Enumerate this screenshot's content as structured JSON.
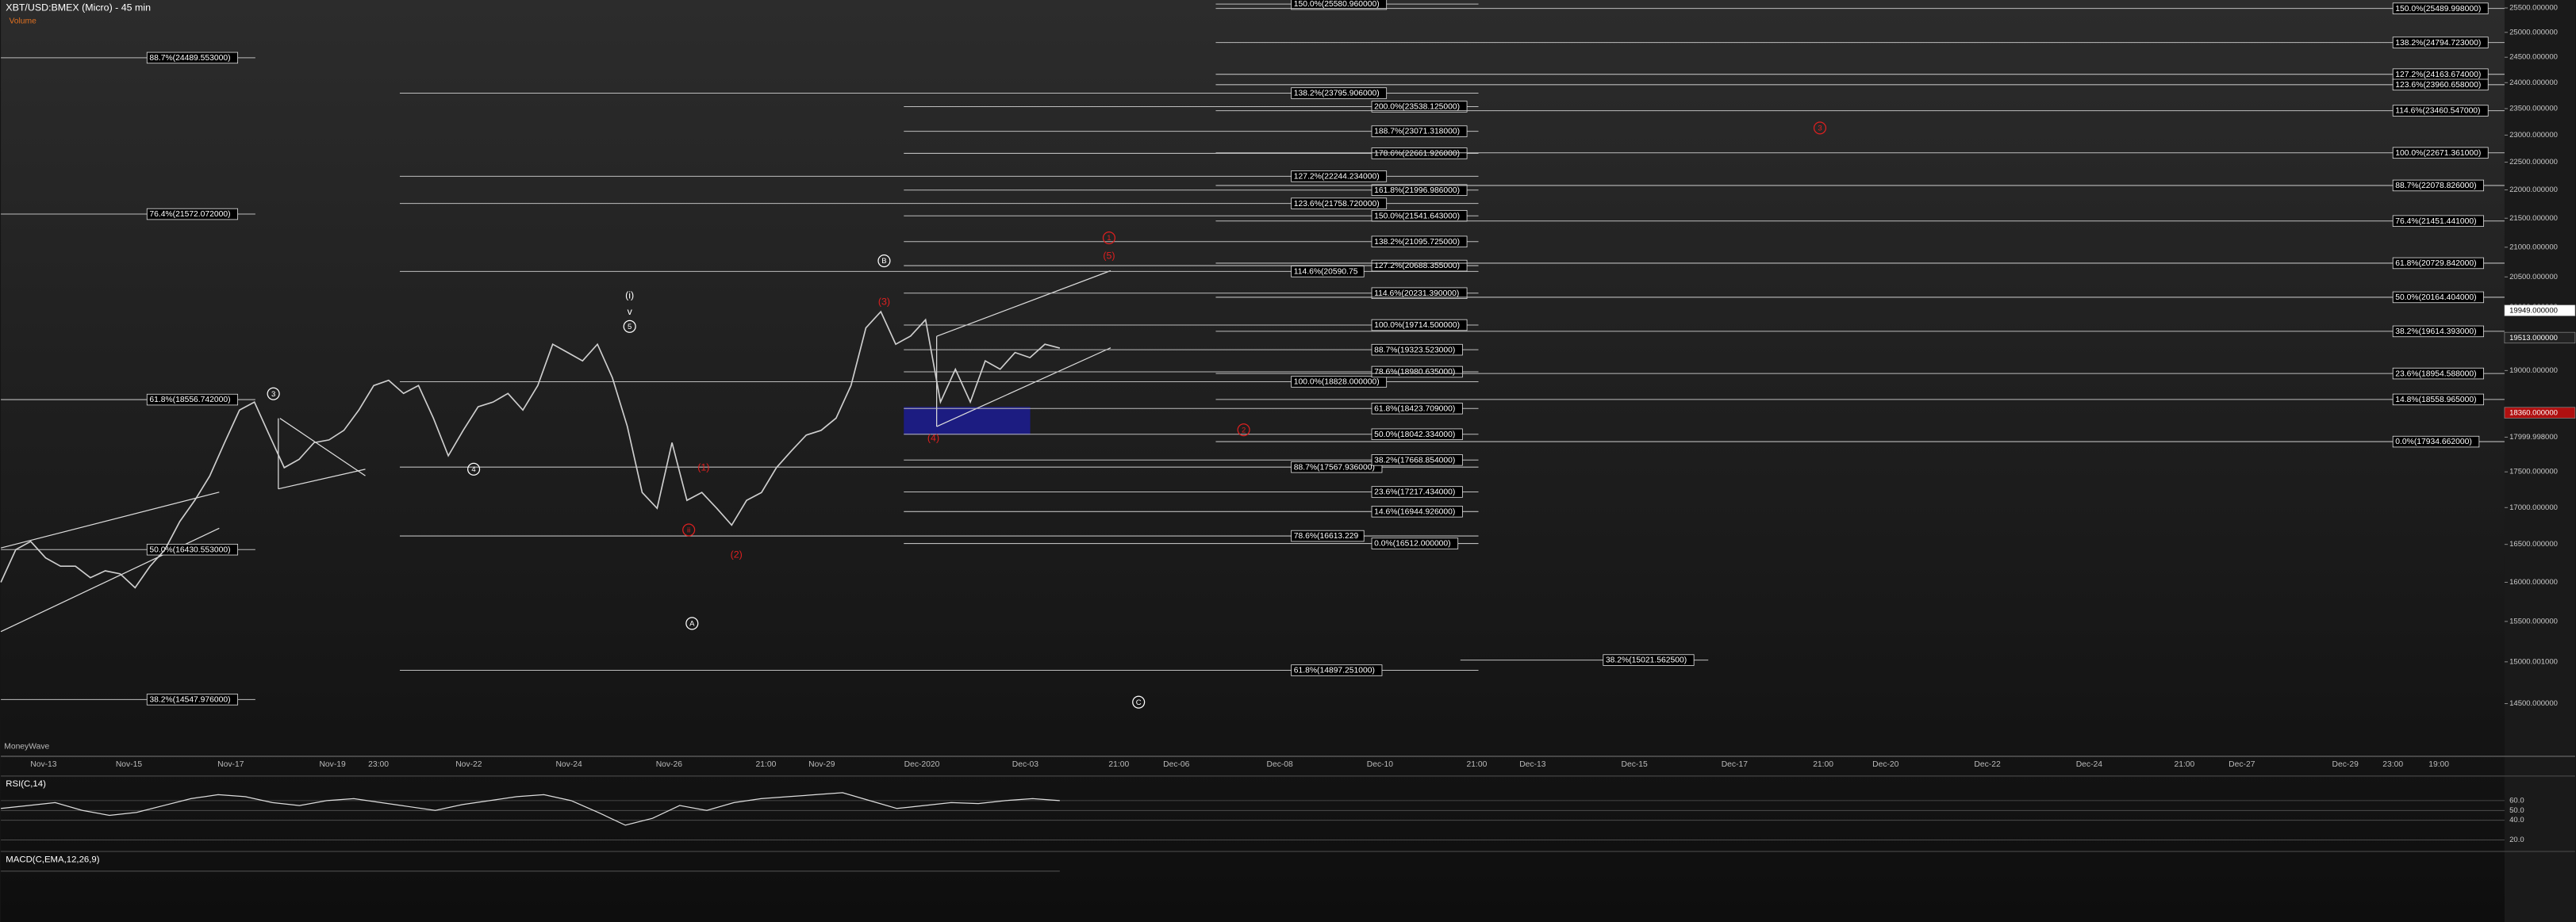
{
  "header": {
    "title": "XBT/USD:BMEX (Micro) - 45 min",
    "volume_label": "Volume",
    "wave_indicator": "MoneyWave"
  },
  "chart_data": {
    "type": "line",
    "log_scale": true,
    "ylim": [
      13893,
      25665
    ],
    "color": "#cfcfcf",
    "yticks": [
      {
        "value": 25500,
        "label": "25500.000000"
      },
      {
        "value": 25000,
        "label": "25000.000000"
      },
      {
        "value": 24500,
        "label": "24500.000000"
      },
      {
        "value": 24000,
        "label": "24000.000000"
      },
      {
        "value": 23500,
        "label": "23500.000000"
      },
      {
        "value": 23000,
        "label": "23000.000000"
      },
      {
        "value": 22500,
        "label": "22500.000000"
      },
      {
        "value": 22000,
        "label": "22000.000000"
      },
      {
        "value": 21500,
        "label": "21500.000000"
      },
      {
        "value": 21000,
        "label": "21000.000000"
      },
      {
        "value": 20500,
        "label": "20500.000000"
      },
      {
        "value": 20000,
        "label": "20000.000000"
      },
      {
        "value": 19000,
        "label": "19000.000000"
      },
      {
        "value": 17999.998,
        "label": "17999.998000"
      },
      {
        "value": 17500,
        "label": "17500.000000"
      },
      {
        "value": 17000,
        "label": "17000.000000"
      },
      {
        "value": 16500,
        "label": "16500.000000"
      },
      {
        "value": 16000,
        "label": "16000.000000"
      },
      {
        "value": 15500,
        "label": "15500.000000"
      },
      {
        "value": 15000.001,
        "label": "15000.001000"
      },
      {
        "value": 14500,
        "label": "14500.000000"
      }
    ],
    "x_labels": [
      "Nov-13",
      "Nov-15",
      "Nov-17",
      "Nov-19",
      "23:00",
      "Nov-22",
      "Nov-24",
      "Nov-26",
      "21:00",
      "Nov-29",
      "Dec-2020",
      "Dec-03",
      "21:00",
      "Dec-06",
      "Dec-08",
      "Dec-10",
      "21:00",
      "Dec-13",
      "Dec-15",
      "Dec-17",
      "21:00",
      "Dec-20",
      "Dec-22",
      "Dec-24",
      "21:00",
      "Dec-27",
      "Dec-29",
      "23:00",
      "19:00"
    ],
    "values": [
      16000,
      16430,
      16540,
      16320,
      16210,
      16210,
      16060,
      16150,
      16110,
      15930,
      16210,
      16430,
      16810,
      17100,
      17440,
      17920,
      18400,
      18520,
      18030,
      17560,
      17680,
      17920,
      17960,
      18100,
      18400,
      18770,
      18850,
      18650,
      18770,
      18280,
      17730,
      18100,
      18450,
      18520,
      18650,
      18400,
      18770,
      19410,
      19280,
      19150,
      19410,
      18890,
      18160,
      17210,
      16990,
      17920,
      17100,
      17210,
      16990,
      16760,
      17100,
      17210,
      17560,
      17800,
      18030,
      18100,
      18280,
      18770,
      19670,
      19930,
      19410,
      19540,
      19800,
      18520,
      19020,
      18520,
      19150,
      19020,
      19280,
      19200,
      19410,
      19350
    ],
    "price_markers": [
      {
        "value": 19949,
        "label": "19949.000000",
        "color": "#ffffff"
      },
      {
        "value": 19513,
        "label": "19513.000000",
        "color": "#222222"
      },
      {
        "value": 18360,
        "label": "18360.000000",
        "color": "#b01010"
      }
    ]
  },
  "fib_sets": [
    {
      "levels": [
        {
          "value": 24489.553,
          "label": "88.7%(24489.553000)"
        },
        {
          "value": 21572.072,
          "label": "76.4%(21572.072000)"
        },
        {
          "value": 18556.742,
          "label": "61.8%(18556.742000)"
        },
        {
          "value": 16430.553,
          "label": "50.0%(16430.553000)"
        },
        {
          "value": 14547.976,
          "label": "38.2%(14547.976000)"
        }
      ]
    },
    {
      "levels": [
        {
          "value": 25580.96,
          "label": "150.0%(25580.960000)"
        },
        {
          "value": 23795.906,
          "label": "138.2%(23795.906000)"
        },
        {
          "value": 22244.234,
          "label": "127.2%(22244.234000)"
        },
        {
          "value": 21758.72,
          "label": "123.6%(21758.720000)"
        },
        {
          "value": 20590.75,
          "label": "114.6%(20590.75"
        },
        {
          "value": 18828,
          "label": "100.0%(18828.000000)"
        },
        {
          "value": 17567.936,
          "label": "88.7%(17567.936000)"
        },
        {
          "value": 16613.229,
          "label": "78.6%(16613.229"
        },
        {
          "value": 14897.251,
          "label": "61.8%(14897.251000)"
        }
      ]
    },
    {
      "levels": [
        {
          "value": 23538.125,
          "label": "200.0%(23538.125000)"
        },
        {
          "value": 23071.318,
          "label": "188.7%(23071.318000)"
        },
        {
          "value": 22661.926,
          "label": "178.6%(22661.926000)"
        },
        {
          "value": 21996.986,
          "label": "161.8%(21996.986000)"
        },
        {
          "value": 21541.643,
          "label": "150.0%(21541.643000)"
        },
        {
          "value": 21095.725,
          "label": "138.2%(21095.725000)"
        },
        {
          "value": 20688.355,
          "label": "127.2%(20688.355000)"
        },
        {
          "value": 20231.39,
          "label": "114.6%(20231.390000)"
        },
        {
          "value": 19714.5,
          "label": "100.0%(19714.500000)"
        },
        {
          "value": 19323.523,
          "label": "88.7%(19323.523000)"
        },
        {
          "value": 18980.635,
          "label": "78.6%(18980.635000)"
        },
        {
          "value": 18423.709,
          "label": "61.8%(18423.709000)"
        },
        {
          "value": 18042.334,
          "label": "50.0%(18042.334000)"
        },
        {
          "value": 17668.854,
          "label": "38.2%(17668.854000)"
        },
        {
          "value": 17217.434,
          "label": "23.6%(17217.434000)"
        },
        {
          "value": 16944.926,
          "label": "14.6%(16944.926000)"
        },
        {
          "value": 16512,
          "label": "0.0%(16512.000000)"
        }
      ]
    },
    {
      "levels": [
        {
          "value": 25489.998,
          "label": "150.0%(25489.998000)"
        },
        {
          "value": 24794.723,
          "label": "138.2%(24794.723000)"
        },
        {
          "value": 24163.674,
          "label": "127.2%(24163.674000)"
        },
        {
          "value": 23960.658,
          "label": "123.6%(23960.658000)"
        },
        {
          "value": 23460.547,
          "label": "114.6%(23460.547000)"
        },
        {
          "value": 22671.361,
          "label": "100.0%(22671.361000)"
        },
        {
          "value": 22078.826,
          "label": "88.7%(22078.826000)"
        },
        {
          "value": 21451.441,
          "label": "76.4%(21451.441000)"
        },
        {
          "value": 20729.842,
          "label": "61.8%(20729.842000)"
        },
        {
          "value": 20164.404,
          "label": "50.0%(20164.404000)"
        },
        {
          "value": 19614.393,
          "label": "38.2%(19614.393000)"
        },
        {
          "value": 18954.588,
          "label": "23.6%(18954.588000)"
        },
        {
          "value": 18558.965,
          "label": "14.8%(18558.965000)"
        },
        {
          "value": 17934.662,
          "label": "0.0%(17934.662000)"
        }
      ]
    },
    {
      "levels": [
        {
          "value": 15021.5625,
          "label": "38.2%(15021.562500)"
        }
      ]
    }
  ],
  "annotations": [
    {
      "text": "(i)",
      "color": "#ffffff",
      "circled": false
    },
    {
      "text": "v",
      "color": "#ffffff",
      "circled": false
    },
    {
      "text": "5",
      "color": "#ffffff",
      "circled": true
    },
    {
      "text": "3",
      "color": "#ffffff",
      "circled": true
    },
    {
      "text": "4",
      "color": "#ffffff",
      "circled": true
    },
    {
      "text": "B",
      "color": "#ffffff",
      "circled": true
    },
    {
      "text": "A",
      "color": "#ffffff",
      "circled": true
    },
    {
      "text": "C",
      "color": "#ffffff",
      "circled": true
    },
    {
      "text": "(3)",
      "color": "#e02020",
      "circled": false
    },
    {
      "text": "(4)",
      "color": "#e02020",
      "circled": false
    },
    {
      "text": "(1)",
      "color": "#e02020",
      "circled": false
    },
    {
      "text": "(2)",
      "color": "#e02020",
      "circled": false
    },
    {
      "text": "ii",
      "color": "#e02020",
      "circled": true
    },
    {
      "text": "(5)",
      "color": "#e02020",
      "circled": false
    },
    {
      "text": "1",
      "color": "#e02020",
      "circled": true
    },
    {
      "text": "2",
      "color": "#e02020",
      "circled": true
    },
    {
      "text": "3",
      "color": "#e02020",
      "circled": true
    }
  ],
  "rsi": {
    "label": "RSI(C,14)",
    "ylim": [
      10,
      80
    ],
    "yticks": [
      {
        "value": 60,
        "label": "60.0"
      },
      {
        "value": 50,
        "label": "50.0"
      },
      {
        "value": 40,
        "label": "40.0"
      },
      {
        "value": 20,
        "label": "20.0"
      }
    ],
    "values": [
      52,
      55,
      58,
      50,
      45,
      48,
      55,
      62,
      66,
      64,
      58,
      55,
      60,
      62,
      58,
      54,
      50,
      56,
      60,
      64,
      66,
      60,
      48,
      35,
      42,
      55,
      50,
      58,
      62,
      64,
      66,
      68,
      60,
      52,
      55,
      58,
      57,
      60,
      62,
      60
    ]
  },
  "macd": {
    "label": "MACD(C,EMA,12,26,9)"
  }
}
